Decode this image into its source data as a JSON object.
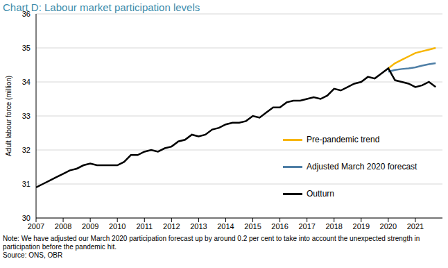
{
  "chart_data": {
    "type": "line",
    "title": "Chart D: Labour market participation levels",
    "y_label": "Adult labour force (million)",
    "note": "Note: We have adjusted our March 2020 participation forecast up by around 0.2 per cent to take into account the unexpected strength in participation before the pandemic hit.",
    "source": "Source: ONS, OBR",
    "x": [
      2007,
      2007.25,
      2007.5,
      2007.75,
      2008,
      2008.25,
      2008.5,
      2008.75,
      2009,
      2009.25,
      2009.5,
      2009.75,
      2010,
      2010.25,
      2010.5,
      2010.75,
      2011,
      2011.25,
      2011.5,
      2011.75,
      2012,
      2012.25,
      2012.5,
      2012.75,
      2013,
      2013.25,
      2013.5,
      2013.75,
      2014,
      2014.25,
      2014.5,
      2014.75,
      2015,
      2015.25,
      2015.5,
      2015.75,
      2016,
      2016.25,
      2016.5,
      2016.75,
      2017,
      2017.25,
      2017.5,
      2017.75,
      2018,
      2018.25,
      2018.5,
      2018.75,
      2019,
      2019.25,
      2019.5,
      2019.75,
      2020,
      2020.25,
      2020.5,
      2020.75,
      2021,
      2021.25,
      2021.5,
      2021.75
    ],
    "series": [
      {
        "name": "Pre-pandemic trend",
        "color": "#f7b500",
        "values": [
          null,
          null,
          null,
          null,
          null,
          null,
          null,
          null,
          null,
          null,
          null,
          null,
          null,
          null,
          null,
          null,
          null,
          null,
          null,
          null,
          null,
          null,
          null,
          null,
          null,
          null,
          null,
          null,
          null,
          null,
          null,
          null,
          null,
          null,
          null,
          null,
          null,
          null,
          null,
          null,
          null,
          null,
          null,
          null,
          null,
          null,
          null,
          null,
          null,
          null,
          null,
          null,
          34.4,
          34.55,
          34.65,
          34.75,
          34.85,
          34.9,
          34.95,
          35.0
        ]
      },
      {
        "name": "Adjusted March 2020 forecast",
        "color": "#4f7fa6",
        "values": [
          null,
          null,
          null,
          null,
          null,
          null,
          null,
          null,
          null,
          null,
          null,
          null,
          null,
          null,
          null,
          null,
          null,
          null,
          null,
          null,
          null,
          null,
          null,
          null,
          null,
          null,
          null,
          null,
          null,
          null,
          null,
          null,
          null,
          null,
          null,
          null,
          null,
          null,
          null,
          null,
          null,
          null,
          null,
          null,
          null,
          null,
          null,
          null,
          null,
          null,
          null,
          null,
          34.3,
          34.35,
          34.38,
          34.4,
          34.43,
          34.48,
          34.52,
          34.55
        ]
      },
      {
        "name": "Outturn",
        "color": "#000000",
        "values": [
          30.9,
          31.0,
          31.1,
          31.2,
          31.3,
          31.4,
          31.45,
          31.55,
          31.6,
          31.55,
          31.55,
          31.55,
          31.55,
          31.65,
          31.85,
          31.85,
          31.95,
          32.0,
          31.95,
          32.05,
          32.1,
          32.25,
          32.3,
          32.45,
          32.4,
          32.45,
          32.6,
          32.65,
          32.75,
          32.8,
          32.8,
          32.85,
          33.0,
          32.95,
          33.1,
          33.25,
          33.25,
          33.4,
          33.45,
          33.45,
          33.5,
          33.55,
          33.5,
          33.6,
          33.8,
          33.75,
          33.85,
          33.95,
          34.0,
          34.15,
          34.1,
          34.25,
          34.4,
          34.05,
          34.0,
          33.95,
          33.85,
          33.9,
          34.0,
          33.85
        ]
      }
    ],
    "xlim": [
      2007,
      2022
    ],
    "xticks": [
      2007,
      2008,
      2009,
      2010,
      2011,
      2012,
      2013,
      2014,
      2015,
      2016,
      2017,
      2018,
      2019,
      2020,
      2021
    ],
    "ylim": [
      30,
      36
    ],
    "yticks": [
      30,
      31,
      32,
      33,
      34,
      35,
      36
    ],
    "grid": true,
    "legend": "right"
  }
}
